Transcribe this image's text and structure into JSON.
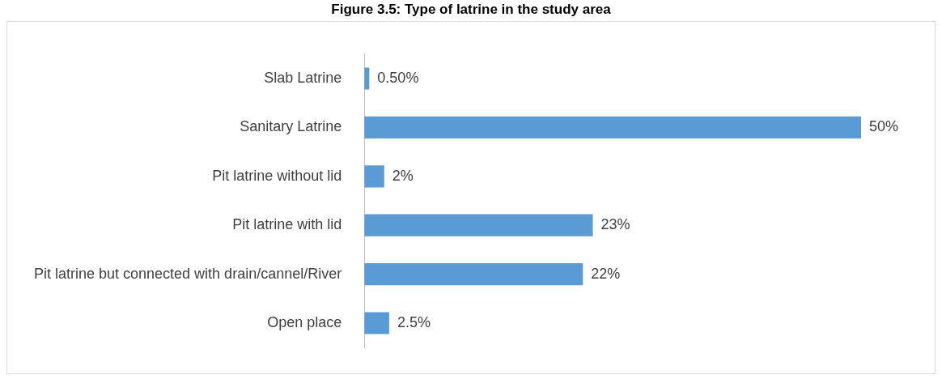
{
  "chart_data": {
    "type": "bar",
    "orientation": "horizontal",
    "title": "Figure 3.5: Type of latrine in the study area",
    "categories": [
      "Slab Latrine",
      "Sanitary Latrine",
      "Pit latrine without lid",
      "Pit latrine with lid",
      "Pit latrine but connected with drain/cannel/River",
      "Open place"
    ],
    "values": [
      0.5,
      50,
      2,
      23,
      22,
      2.5
    ],
    "value_labels": [
      "0.50%",
      "50%",
      "2%",
      "23%",
      "22%",
      "2.5%"
    ],
    "color": "#5b9bd5"
  }
}
